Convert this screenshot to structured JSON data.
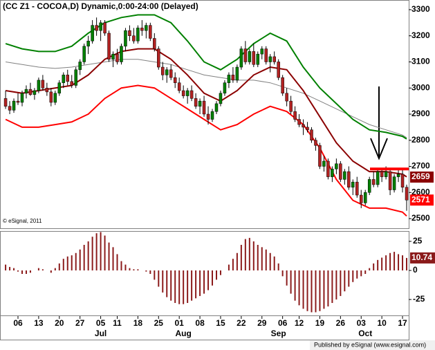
{
  "chart_data": {
    "type": "candlestick",
    "title": "(CC Z1 - COCOA,D) Dynamic,0:00-24:00 (Delayed)",
    "copyright": "© eSignal, 2011",
    "publisher": "Published by eSignal (www.esignal.com)",
    "xlim": [
      -1.35,
      97.5
    ],
    "ylim": [
      2463,
      3337
    ],
    "yticks": [
      2500,
      2600,
      2700,
      2800,
      2900,
      3000,
      3100,
      3200,
      3300
    ],
    "up_color": "#008000",
    "down_color": "#b22222",
    "candles": [
      [
        2960,
        2990,
        2920,
        2930
      ],
      [
        2930,
        2950,
        2900,
        2915
      ],
      [
        2915,
        2960,
        2905,
        2950
      ],
      [
        2950,
        2980,
        2935,
        2945
      ],
      [
        2945,
        2990,
        2930,
        2980
      ],
      [
        2980,
        3010,
        2960,
        2995
      ],
      [
        2995,
        3020,
        2970,
        2975
      ],
      [
        2975,
        3000,
        2955,
        2990
      ],
      [
        2990,
        3040,
        2980,
        3030
      ],
      [
        3030,
        3050,
        2990,
        3000
      ],
      [
        3000,
        3020,
        2970,
        2985
      ],
      [
        2985,
        3000,
        2930,
        2945
      ],
      [
        2945,
        2990,
        2935,
        2980
      ],
      [
        2980,
        3030,
        2970,
        3020
      ],
      [
        3020,
        3060,
        3000,
        3050
      ],
      [
        3050,
        3070,
        3010,
        3025
      ],
      [
        3025,
        3050,
        3000,
        3010
      ],
      [
        3010,
        3080,
        3000,
        3070
      ],
      [
        3070,
        3110,
        3050,
        3100
      ],
      [
        3100,
        3170,
        3090,
        3160
      ],
      [
        3160,
        3200,
        3130,
        3180
      ],
      [
        3180,
        3260,
        3170,
        3240
      ],
      [
        3240,
        3270,
        3200,
        3220
      ],
      [
        3220,
        3260,
        3180,
        3250
      ],
      [
        3250,
        3260,
        3200,
        3210
      ],
      [
        3210,
        3220,
        3100,
        3110
      ],
      [
        3110,
        3140,
        3080,
        3130
      ],
      [
        3130,
        3150,
        3090,
        3100
      ],
      [
        3100,
        3170,
        3090,
        3160
      ],
      [
        3160,
        3230,
        3140,
        3220
      ],
      [
        3220,
        3240,
        3180,
        3200
      ],
      [
        3200,
        3230,
        3170,
        3180
      ],
      [
        3180,
        3240,
        3170,
        3230
      ],
      [
        3230,
        3260,
        3200,
        3220
      ],
      [
        3220,
        3250,
        3190,
        3240
      ],
      [
        3240,
        3250,
        3180,
        3190
      ],
      [
        3190,
        3210,
        3140,
        3150
      ],
      [
        3150,
        3160,
        3070,
        3080
      ],
      [
        3080,
        3100,
        3030,
        3050
      ],
      [
        3050,
        3080,
        3020,
        3070
      ],
      [
        3070,
        3090,
        3030,
        3040
      ],
      [
        3040,
        3060,
        3000,
        3020
      ],
      [
        3020,
        3040,
        2980,
        2990
      ],
      [
        2990,
        3010,
        2960,
        2970
      ],
      [
        2970,
        3000,
        2940,
        2990
      ],
      [
        2990,
        3010,
        2950,
        2960
      ],
      [
        2960,
        2980,
        2920,
        2930
      ],
      [
        2930,
        2960,
        2900,
        2950
      ],
      [
        2950,
        2970,
        2890,
        2900
      ],
      [
        2900,
        2930,
        2860,
        2880
      ],
      [
        2880,
        2920,
        2870,
        2910
      ],
      [
        2910,
        2950,
        2900,
        2940
      ],
      [
        2940,
        2990,
        2930,
        2980
      ],
      [
        2980,
        3030,
        2970,
        3020
      ],
      [
        3020,
        3060,
        3000,
        3050
      ],
      [
        3050,
        3080,
        3020,
        3030
      ],
      [
        3030,
        3090,
        3020,
        3080
      ],
      [
        3080,
        3160,
        3070,
        3150
      ],
      [
        3150,
        3180,
        3090,
        3100
      ],
      [
        3100,
        3150,
        3090,
        3140
      ],
      [
        3140,
        3170,
        3080,
        3090
      ],
      [
        3090,
        3140,
        3080,
        3130
      ],
      [
        3130,
        3160,
        3110,
        3150
      ],
      [
        3150,
        3160,
        3090,
        3100
      ],
      [
        3100,
        3130,
        3060,
        3120
      ],
      [
        3120,
        3140,
        3090,
        3100
      ],
      [
        3100,
        3110,
        3030,
        3040
      ],
      [
        3040,
        3050,
        2970,
        2980
      ],
      [
        2980,
        3000,
        2930,
        2950
      ],
      [
        2950,
        2970,
        2900,
        2910
      ],
      [
        2910,
        2930,
        2870,
        2880
      ],
      [
        2880,
        2900,
        2850,
        2860
      ],
      [
        2860,
        2880,
        2820,
        2850
      ],
      [
        2850,
        2870,
        2830,
        2840
      ],
      [
        2840,
        2850,
        2790,
        2800
      ],
      [
        2800,
        2810,
        2760,
        2780
      ],
      [
        2780,
        2790,
        2690,
        2700
      ],
      [
        2700,
        2740,
        2680,
        2720
      ],
      [
        2720,
        2730,
        2650,
        2660
      ],
      [
        2660,
        2700,
        2640,
        2690
      ],
      [
        2690,
        2730,
        2670,
        2710
      ],
      [
        2710,
        2720,
        2640,
        2650
      ],
      [
        2650,
        2690,
        2630,
        2680
      ],
      [
        2680,
        2700,
        2610,
        2620
      ],
      [
        2620,
        2650,
        2590,
        2640
      ],
      [
        2640,
        2660,
        2580,
        2590
      ],
      [
        2590,
        2610,
        2540,
        2560
      ],
      [
        2560,
        2610,
        2550,
        2600
      ],
      [
        2600,
        2660,
        2590,
        2650
      ],
      [
        2650,
        2680,
        2620,
        2630
      ],
      [
        2630,
        2690,
        2620,
        2680
      ],
      [
        2680,
        2690,
        2640,
        2660
      ],
      [
        2660,
        2700,
        2650,
        2680
      ],
      [
        2680,
        2690,
        2590,
        2610
      ],
      [
        2610,
        2670,
        2600,
        2660
      ],
      [
        2660,
        2690,
        2640,
        2670
      ],
      [
        2670,
        2690,
        2600,
        2620
      ],
      [
        2620,
        2630,
        2530,
        2571
      ]
    ],
    "band_x": [
      0,
      4,
      8,
      12,
      16,
      20,
      24,
      28,
      32,
      36,
      40,
      44,
      48,
      52,
      56,
      60,
      64,
      68,
      72,
      76,
      80,
      84,
      88,
      92,
      96,
      97
    ],
    "bands": [
      {
        "color": "#808080",
        "values": [
          3100,
          3090,
          3080,
          3075,
          3080,
          3090,
          3100,
          3110,
          3110,
          3100,
          3090,
          3070,
          3050,
          3040,
          3030,
          3030,
          3020,
          3000,
          2980,
          2950,
          2920,
          2890,
          2860,
          2840,
          2820,
          2810
        ]
      },
      {
        "color": "#008000",
        "values": [
          3170,
          3150,
          3140,
          3140,
          3160,
          3210,
          3250,
          3270,
          3280,
          3280,
          3250,
          3180,
          3100,
          3070,
          3110,
          3170,
          3210,
          3180,
          3080,
          3000,
          2940,
          2880,
          2840,
          2830,
          2815,
          2805
        ]
      },
      {
        "color": "#8b0000",
        "values": [
          2990,
          2980,
          2990,
          3000,
          3010,
          3050,
          3110,
          3140,
          3150,
          3150,
          3110,
          3050,
          2980,
          2950,
          2990,
          3050,
          3080,
          3070,
          2990,
          2890,
          2790,
          2720,
          2680,
          2680,
          2670,
          2660
        ]
      },
      {
        "color": "#ff0000",
        "values": [
          2880,
          2850,
          2850,
          2860,
          2870,
          2900,
          2960,
          3000,
          3010,
          3000,
          2960,
          2920,
          2880,
          2840,
          2860,
          2900,
          2930,
          2910,
          2860,
          2770,
          2650,
          2570,
          2540,
          2540,
          2525,
          2510
        ]
      }
    ],
    "resistance_level": 2690,
    "resistance_color": "#ff0000",
    "last_labels": [
      {
        "value": 2659,
        "label": "2659",
        "color": "#8b0000"
      },
      {
        "value": 2571,
        "label": "2571",
        "color": "#ff0000"
      }
    ],
    "xticks": [
      {
        "value": 3,
        "label": "06"
      },
      {
        "value": 8,
        "label": "13"
      },
      {
        "value": 13,
        "label": "20"
      },
      {
        "value": 18,
        "label": "27"
      },
      {
        "value": 23,
        "label": "05"
      },
      {
        "value": 27,
        "label": "11"
      },
      {
        "value": 32,
        "label": "18"
      },
      {
        "value": 37,
        "label": "25"
      },
      {
        "value": 42,
        "label": "01"
      },
      {
        "value": 47,
        "label": "08"
      },
      {
        "value": 52,
        "label": "15"
      },
      {
        "value": 57,
        "label": "22"
      },
      {
        "value": 62,
        "label": "29"
      },
      {
        "value": 67,
        "label": "06"
      },
      {
        "value": 71,
        "label": "12"
      },
      {
        "value": 76,
        "label": "19"
      },
      {
        "value": 81,
        "label": "26"
      },
      {
        "value": 86,
        "label": "03"
      },
      {
        "value": 91,
        "label": "10"
      },
      {
        "value": 96,
        "label": "17"
      }
    ],
    "month_ticks": [
      {
        "value": 23,
        "label": "Jul"
      },
      {
        "value": 43,
        "label": "Aug"
      },
      {
        "value": 66,
        "label": "Sep"
      },
      {
        "value": 87,
        "label": "Oct"
      }
    ],
    "oscillator": {
      "type": "bar",
      "color": "#8b1a1a",
      "ylim": [
        -39.3,
        33.3
      ],
      "yticks": [
        -25,
        0,
        25
      ],
      "values": [
        5,
        3,
        2,
        -1,
        -3,
        -3,
        -2,
        0,
        2,
        1,
        0,
        -2,
        2,
        6,
        10,
        12,
        13,
        15,
        18,
        22,
        25,
        29,
        32,
        33,
        30,
        24,
        20,
        14,
        8,
        5,
        2,
        1,
        1,
        0,
        -1,
        -3,
        -8,
        -14,
        -19,
        -23,
        -26,
        -28,
        -29,
        -29,
        -28,
        -26,
        -24,
        -22,
        -20,
        -17,
        -13,
        -8,
        -4,
        0,
        5,
        10,
        15,
        22,
        27,
        28,
        25,
        22,
        20,
        18,
        15,
        12,
        6,
        -5,
        -13,
        -20,
        -26,
        -30,
        -33,
        -35,
        -36,
        -36,
        -35,
        -33,
        -31,
        -28,
        -25,
        -22,
        -18,
        -14,
        -10,
        -7,
        -5,
        -3,
        2,
        6,
        9,
        11,
        13,
        15,
        16,
        14,
        13,
        10.74
      ],
      "last_label": {
        "value": 10.74,
        "label": "10.74"
      }
    }
  }
}
